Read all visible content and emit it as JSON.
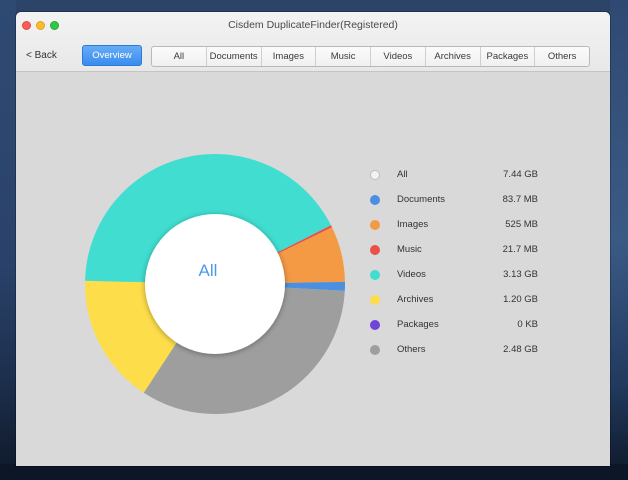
{
  "window": {
    "title": "Cisdem DuplicateFinder(Registered)"
  },
  "toolbar": {
    "back_label": "< Back",
    "overview_label": "Overview",
    "tabs": [
      {
        "label": "All"
      },
      {
        "label": "Documents"
      },
      {
        "label": "Images"
      },
      {
        "label": "Music"
      },
      {
        "label": "Videos"
      },
      {
        "label": "Archives"
      },
      {
        "label": "Packages"
      },
      {
        "label": "Others"
      }
    ]
  },
  "chart": {
    "center_label": "All",
    "legend": [
      {
        "label": "All",
        "size": "7.44 GB",
        "color": "#f3f3f3"
      },
      {
        "label": "Documents",
        "size": "83.7 MB",
        "color": "#4a8fe0"
      },
      {
        "label": "Images",
        "size": "525 MB",
        "color": "#f49a45"
      },
      {
        "label": "Music",
        "size": "21.7 MB",
        "color": "#e8514a"
      },
      {
        "label": "Videos",
        "size": "3.13 GB",
        "color": "#40ddd0"
      },
      {
        "label": "Archives",
        "size": "1.20 GB",
        "color": "#fddd4a"
      },
      {
        "label": "Packages",
        "size": "0 KB",
        "color": "#6e45d6"
      },
      {
        "label": "Others",
        "size": "2.48 GB",
        "color": "#9e9e9e"
      }
    ]
  },
  "chart_data": {
    "type": "pie",
    "categories": [
      "Documents",
      "Images",
      "Music",
      "Videos",
      "Archives",
      "Packages",
      "Others"
    ],
    "values_mb": [
      83.7,
      525,
      21.7,
      3205,
      1229,
      0,
      2540
    ],
    "total": "7.44 GB",
    "title": "All"
  }
}
